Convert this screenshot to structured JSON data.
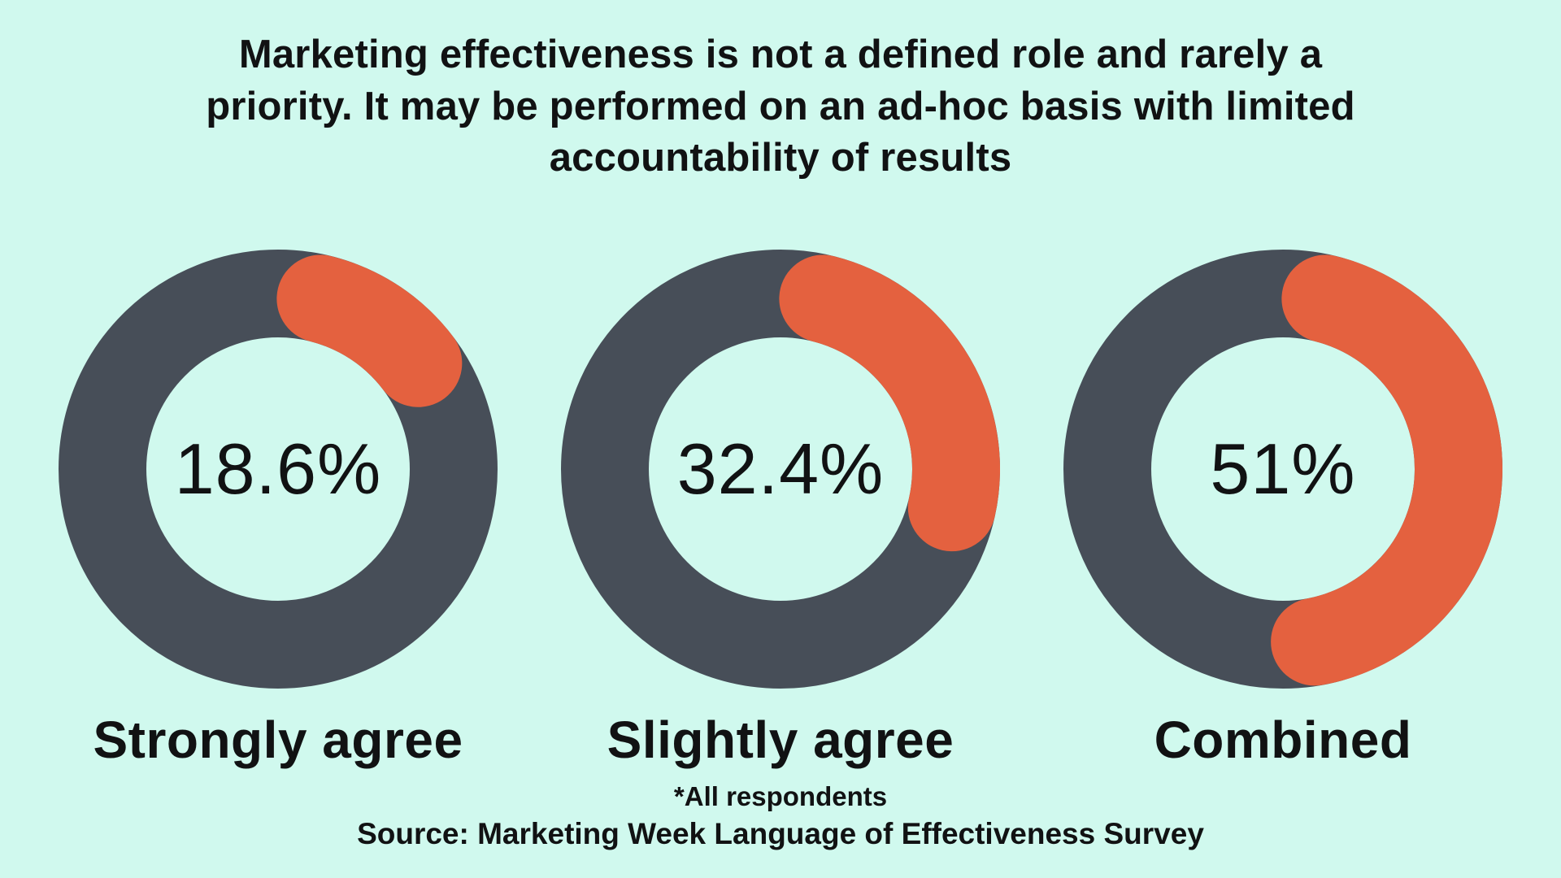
{
  "colors": {
    "background": "#d0f9ee",
    "ring": "#474e58",
    "arc": "#e4613f",
    "text": "#111213"
  },
  "title": {
    "lines": [
      "Marketing effectiveness is not a defined role and rarely a",
      "priority. It may be performed on an ad-hoc basis with limited",
      "accountability of results"
    ]
  },
  "chart_data": [
    {
      "type": "pie",
      "variant": "donut",
      "title": "Strongly agree",
      "center_label": "18.6%",
      "start_angle_deg": 0,
      "direction": "clockwise",
      "segments": [
        {
          "name": "Strongly agree",
          "value": 18.6,
          "color": "#e4613f"
        },
        {
          "name": "Remainder",
          "value": 81.4,
          "color": "#474e58"
        }
      ]
    },
    {
      "type": "pie",
      "variant": "donut",
      "title": "Slightly agree",
      "center_label": "32.4%",
      "start_angle_deg": 0,
      "direction": "clockwise",
      "segments": [
        {
          "name": "Slightly agree",
          "value": 32.4,
          "color": "#e4613f"
        },
        {
          "name": "Remainder",
          "value": 67.6,
          "color": "#474e58"
        }
      ]
    },
    {
      "type": "pie",
      "variant": "donut",
      "title": "Combined",
      "center_label": "51%",
      "start_angle_deg": 0,
      "direction": "clockwise",
      "segments": [
        {
          "name": "Combined",
          "value": 51,
          "color": "#e4613f"
        },
        {
          "name": "Remainder",
          "value": 49,
          "color": "#474e58"
        }
      ]
    }
  ],
  "footer": {
    "footnote": "*All respondents",
    "source": "Source: Marketing Week Language of Effectiveness Survey"
  }
}
